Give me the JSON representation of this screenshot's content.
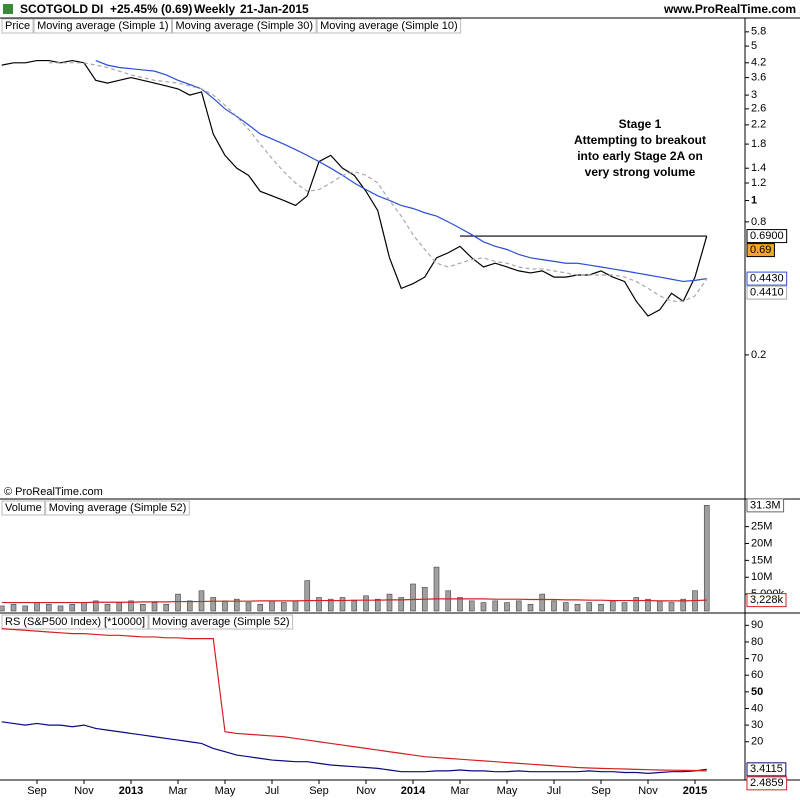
{
  "header": {
    "symbol": "SCOTGOLD DI",
    "change": "+25.45% (0.69)",
    "period": "Weekly",
    "date": "21-Jan-2015",
    "site": "www.ProRealTime.com"
  },
  "copyright": "© ProRealTime.com",
  "chart_data": [
    {
      "type": "line",
      "label": "Price",
      "log_scale": true,
      "ylim": [
        0.045,
        6.7
      ],
      "yticks": [
        5.8,
        5,
        4.2,
        3.6,
        3,
        2.6,
        2.2,
        1.8,
        1.4,
        1.2,
        1,
        0.8,
        0.2
      ],
      "series": [
        {
          "name": "Moving average (Simple 1)",
          "color": "#000000",
          "last_label": "0.69",
          "values": [
            4.1,
            4.2,
            4.2,
            4.3,
            4.3,
            4.2,
            4.3,
            4.2,
            3.5,
            3.4,
            3.5,
            3.6,
            3.5,
            3.4,
            3.3,
            3.2,
            3.0,
            3.1,
            2.0,
            1.6,
            1.4,
            1.3,
            1.1,
            1.05,
            1.0,
            0.95,
            1.05,
            1.5,
            1.6,
            1.4,
            1.3,
            1.1,
            0.9,
            0.55,
            0.4,
            0.42,
            0.45,
            0.55,
            0.58,
            0.62,
            0.55,
            0.5,
            0.52,
            0.5,
            0.48,
            0.47,
            0.48,
            0.45,
            0.45,
            0.46,
            0.46,
            0.48,
            0.45,
            0.43,
            0.35,
            0.3,
            0.32,
            0.38,
            0.35,
            0.45,
            0.69
          ]
        },
        {
          "name": "Moving average (Simple 30)",
          "color": "#2a4fd6",
          "last_label": "0.4430",
          "values": [
            null,
            null,
            null,
            null,
            null,
            null,
            null,
            null,
            4.3,
            4.1,
            4.0,
            3.95,
            3.9,
            3.85,
            3.7,
            3.5,
            3.35,
            3.2,
            2.9,
            2.6,
            2.4,
            2.2,
            2.0,
            1.9,
            1.8,
            1.7,
            1.6,
            1.5,
            1.4,
            1.3,
            1.2,
            1.12,
            1.05,
            1.0,
            0.95,
            0.92,
            0.88,
            0.85,
            0.8,
            0.75,
            0.7,
            0.65,
            0.62,
            0.6,
            0.57,
            0.55,
            0.54,
            0.53,
            0.52,
            0.52,
            0.51,
            0.5,
            0.49,
            0.48,
            0.47,
            0.46,
            0.45,
            0.44,
            0.43,
            0.435,
            0.443
          ]
        },
        {
          "name": "Moving average (Simple 10)",
          "color": "#a8a8a8",
          "dash": true,
          "last_label": "0.4410",
          "values": [
            null,
            null,
            null,
            null,
            4.2,
            4.2,
            4.2,
            4.2,
            4.1,
            4.0,
            3.85,
            3.7,
            3.6,
            3.5,
            3.45,
            3.4,
            3.3,
            3.2,
            3.0,
            2.7,
            2.4,
            2.1,
            1.8,
            1.55,
            1.35,
            1.2,
            1.1,
            1.12,
            1.2,
            1.3,
            1.35,
            1.3,
            1.2,
            1.0,
            0.85,
            0.7,
            0.6,
            0.52,
            0.5,
            0.52,
            0.54,
            0.55,
            0.53,
            0.52,
            0.5,
            0.49,
            0.49,
            0.48,
            0.47,
            0.46,
            0.46,
            0.46,
            0.46,
            0.45,
            0.43,
            0.4,
            0.37,
            0.35,
            0.35,
            0.37,
            0.441
          ]
        }
      ],
      "hline": {
        "value": 0.69,
        "label": "0.6900",
        "from": 39,
        "to": 60
      },
      "annotation": [
        "Stage 1",
        "Attempting to breakout",
        "into early Stage 2A on",
        "very strong volume"
      ]
    },
    {
      "type": "bar",
      "label": "Volume",
      "color": "#a0a0a0",
      "last_label": "31.3M",
      "values": [
        1.5,
        2,
        1.5,
        2.5,
        2,
        1.5,
        2,
        2.5,
        3,
        2,
        2.5,
        3,
        2,
        2.5,
        2,
        5,
        3,
        6,
        4,
        3,
        3.5,
        2.5,
        2,
        3,
        2.5,
        3,
        9,
        4,
        3.5,
        4,
        3,
        4.5,
        3.5,
        5,
        4,
        8,
        7,
        13,
        6,
        4,
        3,
        2.5,
        3,
        2.5,
        3,
        2,
        5,
        3,
        2.5,
        2,
        2.5,
        2,
        3,
        2.5,
        4,
        3.5,
        3,
        2.5,
        3.5,
        6,
        31.3
      ],
      "ylim": [
        0,
        32
      ],
      "yticks": [
        {
          "value": 25,
          "label": "25M"
        },
        {
          "value": 20,
          "label": "20M"
        },
        {
          "value": 15,
          "label": "15M"
        },
        {
          "value": 10,
          "label": "10M"
        },
        {
          "value": 5,
          "label": "5,000k"
        }
      ],
      "series": [
        {
          "name": "Moving average (Simple 52)",
          "color": "#d42020",
          "last_label": "3,228k",
          "values": [
            2.5,
            2.5,
            2.5,
            2.5,
            2.5,
            2.5,
            2.5,
            2.5,
            2.6,
            2.6,
            2.6,
            2.6,
            2.7,
            2.7,
            2.7,
            2.8,
            2.8,
            2.8,
            2.9,
            2.9,
            2.9,
            2.9,
            3,
            3,
            3,
            3,
            3.1,
            3.1,
            3.1,
            3.1,
            3.2,
            3.2,
            3.2,
            3.3,
            3.3,
            3.4,
            3.5,
            3.6,
            3.6,
            3.6,
            3.6,
            3.6,
            3.5,
            3.5,
            3.5,
            3.4,
            3.4,
            3.4,
            3.3,
            3.3,
            3.2,
            3.2,
            3.1,
            3.1,
            3.1,
            3.1,
            3,
            3,
            3,
            3.1,
            3.228
          ]
        }
      ]
    },
    {
      "type": "line",
      "ylim": [
        -3,
        95
      ],
      "yticks": [
        90,
        80,
        70,
        60,
        50,
        40,
        30,
        20
      ],
      "categories": [
        null,
        null,
        null,
        "Sep",
        null,
        null,
        null,
        "Nov",
        null,
        null,
        null,
        "2013",
        null,
        null,
        null,
        "Mar",
        null,
        null,
        null,
        "May",
        null,
        null,
        null,
        "Jul",
        null,
        null,
        null,
        "Sep",
        null,
        null,
        null,
        "Nov",
        null,
        null,
        null,
        "2014",
        null,
        null,
        null,
        "Mar",
        null,
        null,
        null,
        "May",
        null,
        null,
        null,
        "Jul",
        null,
        null,
        null,
        "Sep",
        null,
        null,
        null,
        "Nov",
        null,
        null,
        null,
        "2015",
        null
      ],
      "series": [
        {
          "name": "RS (S&P500 Index) [*10000]",
          "color": "#0a0a80",
          "last_label": "3.4115",
          "values": [
            32,
            31,
            30,
            31,
            30,
            30,
            29,
            30,
            28,
            27,
            26,
            25,
            24,
            23,
            22,
            21,
            20,
            19,
            16,
            14,
            12,
            11,
            10,
            9,
            8.5,
            8,
            8,
            7,
            6,
            5.5,
            5,
            4.5,
            4,
            3,
            2,
            2,
            2,
            2.5,
            2.5,
            3,
            2.5,
            2.5,
            2,
            2,
            2.5,
            2,
            2,
            2,
            2,
            2,
            2.5,
            2,
            2,
            1.5,
            1.5,
            1,
            1.5,
            2,
            2,
            2.5,
            3.4115
          ]
        },
        {
          "name": "Moving average (Simple 52)",
          "color": "#d42020",
          "last_label": "2.4859",
          "values": [
            88,
            87.5,
            87,
            86.5,
            86,
            85.5,
            85,
            85,
            84.5,
            84,
            84,
            83.5,
            83,
            83,
            82.5,
            82.5,
            82,
            82,
            82,
            26,
            25,
            24.5,
            24,
            23.5,
            23,
            22,
            21,
            20,
            19,
            18,
            17,
            16,
            15,
            14,
            13,
            12,
            11,
            10.5,
            10,
            9.5,
            9,
            8.5,
            8,
            7.5,
            7,
            6.5,
            6,
            5.5,
            5,
            4.5,
            4.2,
            4,
            3.8,
            3.6,
            3.4,
            3.2,
            3,
            2.9,
            2.8,
            2.7,
            2.4859
          ]
        }
      ]
    }
  ]
}
